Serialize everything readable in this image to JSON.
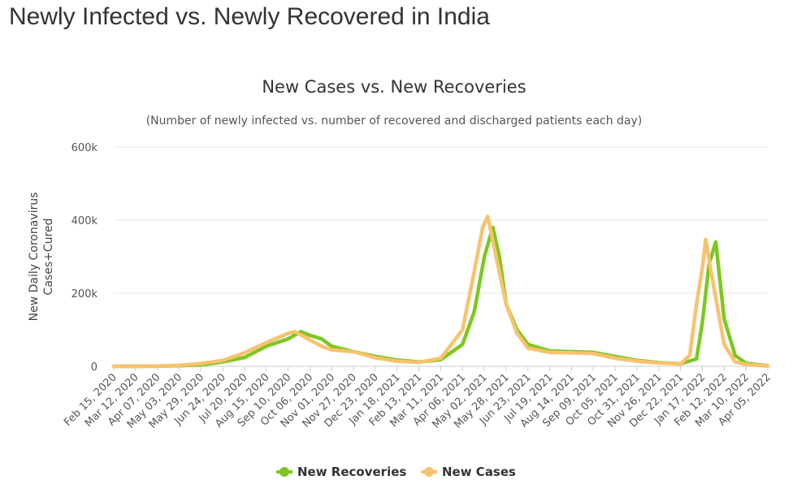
{
  "page": {
    "heading": "Newly Infected vs. Newly Recovered in India"
  },
  "chart_data": {
    "type": "line",
    "title": "New Cases vs. New Recoveries",
    "subtitle": "(Number of newly infected vs. number of recovered and discharged patients each day)",
    "xlabel": "",
    "ylabel": "New Daily Coronavirus Cases+Cured",
    "ylim": [
      0,
      600000
    ],
    "yticks": [
      {
        "value": 0,
        "label": "0"
      },
      {
        "value": 200000,
        "label": "200k"
      },
      {
        "value": 400000,
        "label": "400k"
      },
      {
        "value": 600000,
        "label": "600k"
      }
    ],
    "x_tick_labels": [
      "Feb 15, 2020",
      "Mar 12, 2020",
      "Apr 07, 2020",
      "May 03, 2020",
      "May 29, 2020",
      "Jun 24, 2020",
      "Jul 20, 2020",
      "Aug 15, 2020",
      "Sep 10, 2020",
      "Oct 06, 2020",
      "Nov 01, 2020",
      "Nov 27, 2020",
      "Dec 23, 2020",
      "Jan 18, 2021",
      "Feb 13, 2021",
      "Mar 11, 2021",
      "Apr 06, 2021",
      "May 02, 2021",
      "May 28, 2021",
      "Jun 23, 2021",
      "Jul 19, 2021",
      "Aug 14, 2021",
      "Sep 09, 2021",
      "Oct 05, 2021",
      "Oct 31, 2021",
      "Nov 26, 2021",
      "Dec 22, 2021",
      "Jan 17, 2022",
      "Feb 12, 2022",
      "Mar 10, 2022",
      "Apr 05, 2022"
    ],
    "grid": true,
    "legend_position": "bottom-center",
    "series": [
      {
        "name": "New Recoveries",
        "color": "#7cc823",
        "points": [
          [
            "Feb 15, 2020",
            0
          ],
          [
            "Mar 12, 2020",
            0
          ],
          [
            "Apr 07, 2020",
            200
          ],
          [
            "May 03, 2020",
            1500
          ],
          [
            "May 29, 2020",
            4000
          ],
          [
            "Jun 24, 2020",
            12000
          ],
          [
            "Jul 20, 2020",
            24000
          ],
          [
            "Aug 15, 2020",
            55000
          ],
          [
            "Sep 10, 2020",
            75000
          ],
          [
            "Sep 25, 2020",
            95000
          ],
          [
            "Oct 06, 2020",
            85000
          ],
          [
            "Oct 20, 2020",
            75000
          ],
          [
            "Nov 01, 2020",
            55000
          ],
          [
            "Nov 27, 2020",
            40000
          ],
          [
            "Dec 23, 2020",
            27000
          ],
          [
            "Jan 18, 2021",
            17000
          ],
          [
            "Feb 13, 2021",
            12000
          ],
          [
            "Mar 11, 2021",
            18000
          ],
          [
            "Apr 06, 2021",
            60000
          ],
          [
            "Apr 20, 2021",
            150000
          ],
          [
            "May 02, 2021",
            300000
          ],
          [
            "May 12, 2021",
            380000
          ],
          [
            "May 20, 2021",
            300000
          ],
          [
            "May 28, 2021",
            170000
          ],
          [
            "Jun 10, 2021",
            100000
          ],
          [
            "Jun 23, 2021",
            60000
          ],
          [
            "Jul 19, 2021",
            42000
          ],
          [
            "Aug 14, 2021",
            40000
          ],
          [
            "Sep 09, 2021",
            38000
          ],
          [
            "Oct 05, 2021",
            27000
          ],
          [
            "Oct 31, 2021",
            16000
          ],
          [
            "Nov 26, 2021",
            10000
          ],
          [
            "Dec 22, 2021",
            7000
          ],
          [
            "Jan 10, 2022",
            20000
          ],
          [
            "Jan 17, 2022",
            120000
          ],
          [
            "Jan 25, 2022",
            280000
          ],
          [
            "Feb 02, 2022",
            340000
          ],
          [
            "Feb 12, 2022",
            130000
          ],
          [
            "Feb 25, 2022",
            30000
          ],
          [
            "Mar 10, 2022",
            8000
          ],
          [
            "Apr 05, 2022",
            1500
          ]
        ]
      },
      {
        "name": "New Cases",
        "color": "#f8c36c",
        "points": [
          [
            "Feb 15, 2020",
            0
          ],
          [
            "Mar 12, 2020",
            100
          ],
          [
            "Apr 07, 2020",
            800
          ],
          [
            "May 03, 2020",
            2500
          ],
          [
            "May 29, 2020",
            7500
          ],
          [
            "Jun 24, 2020",
            16000
          ],
          [
            "Jul 20, 2020",
            37000
          ],
          [
            "Aug 15, 2020",
            65000
          ],
          [
            "Sep 10, 2020",
            90000
          ],
          [
            "Sep 18, 2020",
            95000
          ],
          [
            "Oct 06, 2020",
            72000
          ],
          [
            "Oct 20, 2020",
            55000
          ],
          [
            "Nov 01, 2020",
            45000
          ],
          [
            "Nov 27, 2020",
            40000
          ],
          [
            "Dec 23, 2020",
            23000
          ],
          [
            "Jan 18, 2021",
            14000
          ],
          [
            "Feb 13, 2021",
            11000
          ],
          [
            "Mar 11, 2021",
            22000
          ],
          [
            "Apr 06, 2021",
            100000
          ],
          [
            "Apr 20, 2021",
            260000
          ],
          [
            "Apr 30, 2021",
            380000
          ],
          [
            "May 06, 2021",
            410000
          ],
          [
            "May 16, 2021",
            300000
          ],
          [
            "May 28, 2021",
            170000
          ],
          [
            "Jun 10, 2021",
            90000
          ],
          [
            "Jun 23, 2021",
            50000
          ],
          [
            "Jul 19, 2021",
            38000
          ],
          [
            "Aug 14, 2021",
            37000
          ],
          [
            "Sep 09, 2021",
            35000
          ],
          [
            "Oct 05, 2021",
            22000
          ],
          [
            "Oct 31, 2021",
            14000
          ],
          [
            "Nov 26, 2021",
            9000
          ],
          [
            "Dec 22, 2021",
            6500
          ],
          [
            "Jan 02, 2022",
            30000
          ],
          [
            "Jan 10, 2022",
            170000
          ],
          [
            "Jan 17, 2022",
            270000
          ],
          [
            "Jan 21, 2022",
            347000
          ],
          [
            "Jan 28, 2022",
            250000
          ],
          [
            "Feb 12, 2022",
            60000
          ],
          [
            "Feb 25, 2022",
            12000
          ],
          [
            "Mar 10, 2022",
            5000
          ],
          [
            "Apr 05, 2022",
            1000
          ]
        ]
      }
    ]
  }
}
